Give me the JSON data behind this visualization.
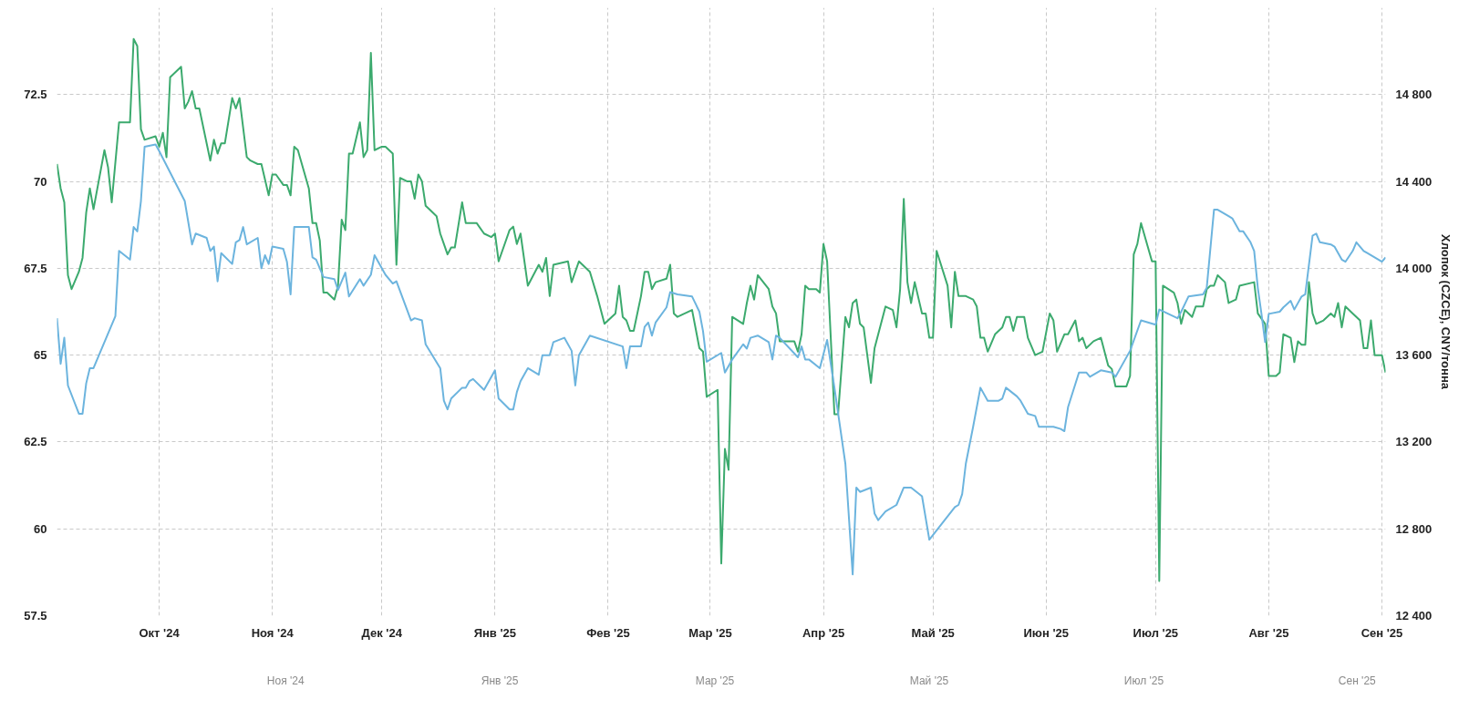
{
  "chart_data": [
    {
      "type": "line",
      "y2label": "Хлопок (CZCE), CNY/тонна",
      "xlim": [
        "2024-09-03",
        "2025-09-02"
      ],
      "xticks": [
        {
          "value": "2024-10-01",
          "label": "Окт '24"
        },
        {
          "value": "2024-11-01",
          "label": "Ноя '24"
        },
        {
          "value": "2024-12-01",
          "label": "Дек '24"
        },
        {
          "value": "2025-01-01",
          "label": "Янв '25"
        },
        {
          "value": "2025-02-01",
          "label": "Фев '25"
        },
        {
          "value": "2025-03-01",
          "label": "Мар '25"
        },
        {
          "value": "2025-04-01",
          "label": "Апр '25"
        },
        {
          "value": "2025-05-01",
          "label": "Май '25"
        },
        {
          "value": "2025-06-01",
          "label": "Июн '25"
        },
        {
          "value": "2025-07-01",
          "label": "Июл '25"
        },
        {
          "value": "2025-08-01",
          "label": "Авг '25"
        },
        {
          "value": "2025-09-01",
          "label": "Сен '25"
        }
      ],
      "ylim": [
        57.5,
        75
      ],
      "yticks": [
        57.5,
        60,
        62.5,
        65,
        67.5,
        70,
        72.5
      ],
      "y2lim": [
        12400,
        15200
      ],
      "y2ticks": [
        {
          "value": 12400,
          "label": "12 400"
        },
        {
          "value": 12800,
          "label": "12 800"
        },
        {
          "value": 13200,
          "label": "13 200"
        },
        {
          "value": 13600,
          "label": "13 600"
        },
        {
          "value": 14000,
          "label": "14 000"
        },
        {
          "value": 14400,
          "label": "14 400"
        },
        {
          "value": 14800,
          "label": "14 800"
        }
      ],
      "grid": true,
      "line_style": "solid",
      "series": [
        {
          "color": "#3caa6e",
          "x": [
            "2024-09-03",
            "2024-09-04",
            "2024-09-05",
            "2024-09-06",
            "2024-09-07",
            "2024-09-09",
            "2024-09-10",
            "2024-09-11",
            "2024-09-12",
            "2024-09-13",
            "2024-09-16",
            "2024-09-17",
            "2024-09-18",
            "2024-09-20",
            "2024-09-23",
            "2024-09-24",
            "2024-09-25",
            "2024-09-26",
            "2024-09-27",
            "2024-09-30",
            "2024-10-01",
            "2024-10-02",
            "2024-10-03",
            "2024-10-04",
            "2024-10-07",
            "2024-10-08",
            "2024-10-09",
            "2024-10-10",
            "2024-10-11",
            "2024-10-12",
            "2024-10-15",
            "2024-10-16",
            "2024-10-17",
            "2024-10-18",
            "2024-10-19",
            "2024-10-21",
            "2024-10-22",
            "2024-10-23",
            "2024-10-25",
            "2024-10-26",
            "2024-10-28",
            "2024-10-29",
            "2024-10-31",
            "2024-11-01",
            "2024-11-02",
            "2024-11-04",
            "2024-11-05",
            "2024-11-06",
            "2024-11-07",
            "2024-11-08",
            "2024-11-11",
            "2024-11-12",
            "2024-11-13",
            "2024-11-14",
            "2024-11-15",
            "2024-11-16",
            "2024-11-18",
            "2024-11-19",
            "2024-11-20",
            "2024-11-21",
            "2024-11-22",
            "2024-11-23",
            "2024-11-25",
            "2024-11-26",
            "2024-11-27",
            "2024-11-28",
            "2024-11-29",
            "2024-12-01",
            "2024-12-02",
            "2024-12-04",
            "2024-12-05",
            "2024-12-06",
            "2024-12-08",
            "2024-12-09",
            "2024-12-10",
            "2024-12-11",
            "2024-12-12",
            "2024-12-13",
            "2024-12-14",
            "2024-12-16",
            "2024-12-17",
            "2024-12-18",
            "2024-12-19",
            "2024-12-20",
            "2024-12-21",
            "2024-12-23",
            "2024-12-24",
            "2024-12-25",
            "2024-12-27",
            "2024-12-29",
            "2024-12-31",
            "2025-01-01",
            "2025-01-02",
            "2025-01-05",
            "2025-01-06",
            "2025-01-07",
            "2025-01-08",
            "2025-01-10",
            "2025-01-13",
            "2025-01-14",
            "2025-01-15",
            "2025-01-16",
            "2025-01-17",
            "2025-01-21",
            "2025-01-22",
            "2025-01-24",
            "2025-01-27",
            "2025-01-29",
            "2025-01-31",
            "2025-02-03",
            "2025-02-04",
            "2025-02-05",
            "2025-02-06",
            "2025-02-07",
            "2025-02-08",
            "2025-02-10",
            "2025-02-11",
            "2025-02-12",
            "2025-02-13",
            "2025-02-14",
            "2025-02-17",
            "2025-02-18",
            "2025-02-19",
            "2025-02-20",
            "2025-02-24",
            "2025-02-26",
            "2025-02-27",
            "2025-02-28",
            "2025-03-03",
            "2025-03-04",
            "2025-03-05",
            "2025-03-06",
            "2025-03-07",
            "2025-03-10",
            "2025-03-11",
            "2025-03-12",
            "2025-03-13",
            "2025-03-14",
            "2025-03-17",
            "2025-03-18",
            "2025-03-19",
            "2025-03-20",
            "2025-03-21",
            "2025-03-23",
            "2025-03-24",
            "2025-03-25",
            "2025-03-26",
            "2025-03-27",
            "2025-03-28",
            "2025-03-30",
            "2025-03-31",
            "2025-04-01",
            "2025-04-02",
            "2025-04-04",
            "2025-04-05",
            "2025-04-07",
            "2025-04-08",
            "2025-04-09",
            "2025-04-10",
            "2025-04-11",
            "2025-04-12",
            "2025-04-14",
            "2025-04-15",
            "2025-04-18",
            "2025-04-20",
            "2025-04-21",
            "2025-04-22",
            "2025-04-23",
            "2025-04-24",
            "2025-04-25",
            "2025-04-26",
            "2025-04-28",
            "2025-04-29",
            "2025-04-30",
            "2025-05-01",
            "2025-05-02",
            "2025-05-05",
            "2025-05-06",
            "2025-05-07",
            "2025-05-08",
            "2025-05-10",
            "2025-05-12",
            "2025-05-13",
            "2025-05-14",
            "2025-05-15",
            "2025-05-16",
            "2025-05-18",
            "2025-05-20",
            "2025-05-21",
            "2025-05-22",
            "2025-05-23",
            "2025-05-24",
            "2025-05-26",
            "2025-05-27",
            "2025-05-29",
            "2025-05-31",
            "2025-06-02",
            "2025-06-03",
            "2025-06-04",
            "2025-06-06",
            "2025-06-07",
            "2025-06-09",
            "2025-06-10",
            "2025-06-11",
            "2025-06-12",
            "2025-06-14",
            "2025-06-16",
            "2025-06-18",
            "2025-06-19",
            "2025-06-20",
            "2025-06-23",
            "2025-06-24",
            "2025-06-25",
            "2025-06-26",
            "2025-06-27",
            "2025-06-30",
            "2025-07-01",
            "2025-07-02",
            "2025-07-03",
            "2025-07-06",
            "2025-07-07",
            "2025-07-08",
            "2025-07-09",
            "2025-07-11",
            "2025-07-12",
            "2025-07-14",
            "2025-07-15",
            "2025-07-16",
            "2025-07-17",
            "2025-07-18",
            "2025-07-20",
            "2025-07-21",
            "2025-07-23",
            "2025-07-24",
            "2025-07-28",
            "2025-07-29",
            "2025-07-31",
            "2025-08-01",
            "2025-08-03",
            "2025-08-04",
            "2025-08-05",
            "2025-08-07",
            "2025-08-08",
            "2025-08-09",
            "2025-08-10",
            "2025-08-11",
            "2025-08-12",
            "2025-08-13",
            "2025-08-14",
            "2025-08-16",
            "2025-08-18",
            "2025-08-19",
            "2025-08-20",
            "2025-08-21",
            "2025-08-22",
            "2025-08-24",
            "2025-08-26",
            "2025-08-27",
            "2025-08-28",
            "2025-08-29",
            "2025-08-30",
            "2025-09-01",
            "2025-09-02"
          ],
          "values": [
            70.5,
            69.8,
            69.4,
            67.3,
            66.9,
            67.4,
            67.8,
            69.1,
            69.8,
            69.2,
            70.9,
            70.4,
            69.4,
            71.7,
            71.7,
            74.1,
            73.9,
            71.5,
            71.2,
            71.3,
            71.0,
            71.4,
            70.7,
            73.0,
            73.3,
            72.1,
            72.3,
            72.6,
            72.1,
            72.1,
            70.6,
            71.2,
            70.8,
            71.1,
            71.1,
            72.4,
            72.1,
            72.4,
            70.7,
            70.6,
            70.5,
            70.5,
            69.6,
            70.2,
            70.2,
            69.9,
            69.9,
            69.6,
            71.0,
            70.9,
            69.8,
            68.8,
            68.8,
            68.3,
            66.8,
            66.8,
            66.6,
            67.0,
            68.9,
            68.6,
            70.8,
            70.8,
            71.7,
            70.7,
            70.9,
            73.7,
            70.9,
            71.0,
            71.0,
            70.8,
            67.6,
            70.1,
            70.0,
            70.0,
            69.5,
            70.2,
            70.0,
            69.3,
            69.2,
            69.0,
            68.5,
            68.2,
            67.9,
            68.1,
            68.1,
            69.4,
            68.8,
            68.8,
            68.8,
            68.5,
            68.4,
            68.5,
            67.7,
            68.6,
            68.7,
            68.2,
            68.5,
            67.0,
            67.6,
            67.4,
            67.8,
            66.7,
            67.6,
            67.7,
            67.1,
            67.7,
            67.4,
            66.7,
            65.9,
            66.2,
            67.0,
            66.1,
            66.0,
            65.7,
            65.7,
            66.7,
            67.4,
            67.4,
            66.9,
            67.1,
            67.2,
            67.6,
            66.2,
            66.1,
            66.3,
            65.2,
            65.1,
            63.8,
            64.0,
            59.0,
            62.3,
            61.7,
            66.1,
            65.9,
            66.5,
            67.0,
            66.6,
            67.3,
            66.9,
            66.4,
            66.2,
            65.4,
            65.4,
            65.4,
            65.4,
            65.1,
            65.6,
            67.0,
            66.9,
            66.9,
            66.8,
            68.2,
            67.7,
            63.3,
            63.3,
            66.1,
            65.8,
            66.5,
            66.6,
            65.9,
            65.8,
            64.2,
            65.2,
            66.4,
            66.3,
            65.8,
            66.9,
            69.5,
            67.1,
            66.5,
            67.1,
            66.2,
            66.2,
            65.5,
            65.5,
            68.0,
            67.0,
            65.8,
            67.4,
            66.7,
            66.7,
            66.6,
            66.4,
            65.5,
            65.5,
            65.1,
            65.6,
            65.8,
            66.1,
            66.1,
            65.7,
            66.1,
            66.1,
            65.5,
            65.0,
            65.1,
            66.2,
            66.0,
            65.1,
            65.6,
            65.6,
            66.0,
            65.4,
            65.5,
            65.2,
            65.4,
            65.5,
            64.7,
            64.6,
            64.1,
            64.1,
            64.4,
            67.9,
            68.2,
            68.8,
            67.7,
            67.7,
            58.5,
            67.0,
            66.8,
            66.5,
            65.9,
            66.3,
            66.1,
            66.4,
            66.4,
            66.9,
            67.0,
            67.0,
            67.3,
            67.1,
            66.5,
            66.6,
            67.0,
            67.1,
            66.2,
            65.9,
            64.4,
            64.4,
            64.5,
            65.6,
            65.5,
            64.8,
            65.4,
            65.3,
            65.3,
            67.1,
            66.2,
            65.9,
            66.0,
            66.2,
            66.1,
            66.5,
            65.8,
            66.4,
            66.2,
            66.0,
            65.2,
            65.2,
            66.0,
            65.0,
            65.0,
            64.5
          ]
        },
        {
          "color": "#6cb4de",
          "axis": "y2",
          "x": [
            "2024-09-03",
            "2024-09-04",
            "2024-09-05",
            "2024-09-06",
            "2024-09-09",
            "2024-09-10",
            "2024-09-11",
            "2024-09-12",
            "2024-09-13",
            "2024-09-19",
            "2024-09-20",
            "2024-09-23",
            "2024-09-24",
            "2024-09-25",
            "2024-09-26",
            "2024-09-27",
            "2024-09-30",
            "2024-10-01",
            "2024-10-08",
            "2024-10-10",
            "2024-10-11",
            "2024-10-14",
            "2024-10-15",
            "2024-10-16",
            "2024-10-17",
            "2024-10-18",
            "2024-10-21",
            "2024-10-22",
            "2024-10-23",
            "2024-10-24",
            "2024-10-25",
            "2024-10-28",
            "2024-10-29",
            "2024-10-30",
            "2024-10-31",
            "2024-11-01",
            "2024-11-04",
            "2024-11-05",
            "2024-11-06",
            "2024-11-07",
            "2024-11-11",
            "2024-11-12",
            "2024-11-13",
            "2024-11-15",
            "2024-11-18",
            "2024-11-19",
            "2024-11-21",
            "2024-11-22",
            "2024-11-25",
            "2024-11-26",
            "2024-11-28",
            "2024-11-29",
            "2024-12-02",
            "2024-12-04",
            "2024-12-05",
            "2024-12-09",
            "2024-12-10",
            "2024-12-12",
            "2024-12-13",
            "2024-12-17",
            "2024-12-18",
            "2024-12-19",
            "2024-12-20",
            "2024-12-23",
            "2024-12-24",
            "2024-12-25",
            "2024-12-26",
            "2024-12-29",
            "2024-12-31",
            "2025-01-01",
            "2025-01-02",
            "2025-01-05",
            "2025-01-06",
            "2025-01-07",
            "2025-01-08",
            "2025-01-10",
            "2025-01-13",
            "2025-01-14",
            "2025-01-15",
            "2025-01-16",
            "2025-01-17",
            "2025-01-20",
            "2025-01-22",
            "2025-01-23",
            "2025-01-24",
            "2025-01-27",
            "2025-02-05",
            "2025-02-06",
            "2025-02-07",
            "2025-02-10",
            "2025-02-11",
            "2025-02-12",
            "2025-02-13",
            "2025-02-14",
            "2025-02-17",
            "2025-02-18",
            "2025-02-20",
            "2025-02-24",
            "2025-02-26",
            "2025-02-27",
            "2025-02-28",
            "2025-03-04",
            "2025-03-05",
            "2025-03-07",
            "2025-03-10",
            "2025-03-11",
            "2025-03-12",
            "2025-03-14",
            "2025-03-17",
            "2025-03-18",
            "2025-03-19",
            "2025-03-20",
            "2025-03-25",
            "2025-03-26",
            "2025-03-27",
            "2025-03-28",
            "2025-03-31",
            "2025-04-02",
            "2025-04-04",
            "2025-04-07",
            "2025-04-09",
            "2025-04-10",
            "2025-04-11",
            "2025-04-14",
            "2025-04-15",
            "2025-04-16",
            "2025-04-18",
            "2025-04-21",
            "2025-04-23",
            "2025-04-25",
            "2025-04-28",
            "2025-04-30",
            "2025-05-07",
            "2025-05-08",
            "2025-05-09",
            "2025-05-10",
            "2025-05-12",
            "2025-05-14",
            "2025-05-16",
            "2025-05-19",
            "2025-05-20",
            "2025-05-21",
            "2025-05-24",
            "2025-05-25",
            "2025-05-27",
            "2025-05-29",
            "2025-05-30",
            "2025-06-03",
            "2025-06-05",
            "2025-06-06",
            "2025-06-07",
            "2025-06-10",
            "2025-06-12",
            "2025-06-13",
            "2025-06-16",
            "2025-06-19",
            "2025-06-20",
            "2025-06-24",
            "2025-06-27",
            "2025-07-01",
            "2025-07-02",
            "2025-07-07",
            "2025-07-08",
            "2025-07-10",
            "2025-07-14",
            "2025-07-15",
            "2025-07-17",
            "2025-07-18",
            "2025-07-21",
            "2025-07-22",
            "2025-07-24",
            "2025-07-25",
            "2025-07-27",
            "2025-07-28",
            "2025-07-29",
            "2025-07-30",
            "2025-07-31",
            "2025-08-01",
            "2025-08-04",
            "2025-08-05",
            "2025-08-07",
            "2025-08-08",
            "2025-08-10",
            "2025-08-11",
            "2025-08-13",
            "2025-08-14",
            "2025-08-15",
            "2025-08-18",
            "2025-08-19",
            "2025-08-21",
            "2025-08-22",
            "2025-08-24",
            "2025-08-25",
            "2025-08-27",
            "2025-08-28",
            "2025-09-01",
            "2025-09-02"
          ],
          "values": [
            13770,
            13560,
            13680,
            13460,
            13330,
            13330,
            13470,
            13540,
            13540,
            13780,
            14080,
            14040,
            14190,
            14170,
            14310,
            14560,
            14570,
            14540,
            14310,
            14110,
            14160,
            14140,
            14080,
            14100,
            13940,
            14070,
            14020,
            14120,
            14130,
            14190,
            14110,
            14140,
            14000,
            14060,
            14020,
            14100,
            14090,
            14030,
            13880,
            14190,
            14190,
            14050,
            14040,
            13960,
            13950,
            13900,
            13980,
            13870,
            13950,
            13920,
            13970,
            14060,
            13970,
            13930,
            13940,
            13760,
            13770,
            13760,
            13650,
            13540,
            13390,
            13350,
            13400,
            13450,
            13450,
            13480,
            13490,
            13440,
            13500,
            13530,
            13400,
            13350,
            13350,
            13430,
            13480,
            13540,
            13510,
            13600,
            13600,
            13600,
            13660,
            13680,
            13620,
            13460,
            13600,
            13690,
            13640,
            13540,
            13640,
            13640,
            13730,
            13750,
            13690,
            13750,
            13820,
            13890,
            13880,
            13870,
            13800,
            13710,
            13570,
            13610,
            13520,
            13580,
            13650,
            13630,
            13680,
            13690,
            13660,
            13580,
            13690,
            13680,
            13590,
            13640,
            13580,
            13580,
            13540,
            13670,
            13450,
            13100,
            12590,
            12990,
            12970,
            12990,
            12870,
            12840,
            12880,
            12910,
            12990,
            12990,
            12950,
            12750,
            12900,
            12910,
            12960,
            13100,
            13270,
            13450,
            13390,
            13390,
            13400,
            13450,
            13410,
            13390,
            13330,
            13320,
            13270,
            13270,
            13260,
            13250,
            13360,
            13520,
            13520,
            13500,
            13530,
            13520,
            13500,
            13620,
            13760,
            13740,
            13810,
            13770,
            13800,
            13870,
            13880,
            13910,
            14270,
            14270,
            14240,
            14230,
            14170,
            14170,
            14120,
            14080,
            13910,
            13790,
            13660,
            13790,
            13800,
            13820,
            13850,
            13810,
            13870,
            13880,
            14150,
            14160,
            14120,
            14110,
            14100,
            14040,
            14030,
            14080,
            14120,
            14080,
            14070,
            14030,
            14050
          ]
        }
      ]
    },
    {
      "type": "other",
      "annotations": [
        "Ноя '24",
        "Янв '25",
        "Мар '25",
        "Май '25",
        "Июл '25",
        "Сен '25"
      ]
    }
  ]
}
